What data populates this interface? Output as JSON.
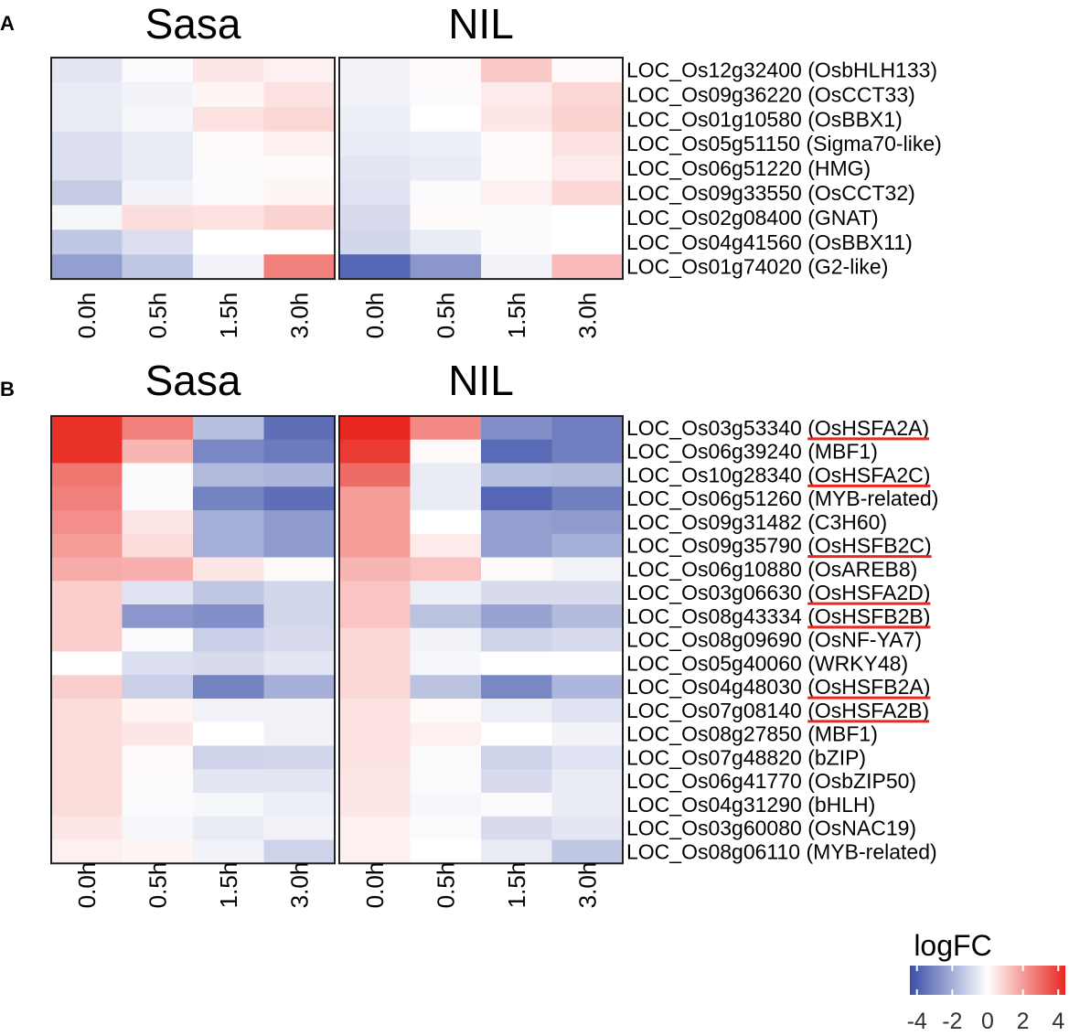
{
  "chart_data": [
    {
      "type": "heatmap",
      "panel_label": "A",
      "groups": [
        "Sasa",
        "NIL"
      ],
      "timepoints": [
        "0.0h",
        "0.5h",
        "1.5h",
        "3.0h"
      ],
      "genes": [
        {
          "id": "LOC_Os12g32400",
          "name": "(OsbHLH133)",
          "underlined": false
        },
        {
          "id": "LOC_Os09g36220",
          "name": "(OsCCT33)",
          "underlined": false
        },
        {
          "id": "LOC_Os01g10580",
          "name": "(OsBBX1)",
          "underlined": false
        },
        {
          "id": "LOC_Os05g51150",
          "name": "(Sigma70-like)",
          "underlined": false
        },
        {
          "id": "LOC_Os06g51220",
          "name": "(HMG)",
          "underlined": false
        },
        {
          "id": "LOC_Os09g33550",
          "name": "(OsCCT32)",
          "underlined": false
        },
        {
          "id": "LOC_Os02g08400",
          "name": "(GNAT)",
          "underlined": false
        },
        {
          "id": "LOC_Os04g41560",
          "name": "(OsBBX11)",
          "underlined": false
        },
        {
          "id": "LOC_Os01g74020",
          "name": "(G2-like)",
          "underlined": false
        }
      ],
      "values": {
        "Sasa": [
          [
            -0.6,
            -0.1,
            0.5,
            0.3
          ],
          [
            -0.5,
            -0.3,
            0.2,
            0.6
          ],
          [
            -0.5,
            -0.2,
            0.6,
            0.8
          ],
          [
            -0.8,
            -0.5,
            0.1,
            0.3
          ],
          [
            -0.8,
            -0.5,
            -0.1,
            0.1
          ],
          [
            -1.3,
            -0.3,
            -0.1,
            0.2
          ],
          [
            -0.2,
            0.7,
            0.6,
            0.9
          ],
          [
            -1.4,
            -0.8,
            0.0,
            0.0
          ],
          [
            -2.4,
            -1.4,
            -0.3,
            2.6
          ]
        ],
        "NIL": [
          [
            -0.3,
            0.1,
            1.1,
            0.1
          ],
          [
            -0.3,
            -0.1,
            0.4,
            0.8
          ],
          [
            -0.4,
            0.0,
            0.5,
            0.9
          ],
          [
            -0.5,
            -0.4,
            0.1,
            0.6
          ],
          [
            -0.6,
            -0.5,
            0.1,
            0.4
          ],
          [
            -0.7,
            -0.1,
            0.3,
            0.8
          ],
          [
            -0.9,
            0.1,
            -0.1,
            0.0
          ],
          [
            -1.0,
            -0.5,
            -0.1,
            0.0
          ],
          [
            -3.8,
            -2.6,
            -0.3,
            1.4
          ]
        ]
      }
    },
    {
      "type": "heatmap",
      "panel_label": "B",
      "groups": [
        "Sasa",
        "NIL"
      ],
      "timepoints": [
        "0.0h",
        "0.5h",
        "1.5h",
        "3.0h"
      ],
      "genes": [
        {
          "id": "LOC_Os03g53340",
          "name": "(OsHSFA2A)",
          "underlined": true
        },
        {
          "id": "LOC_Os06g39240",
          "name": "(MBF1)",
          "underlined": false
        },
        {
          "id": "LOC_Os10g28340",
          "name": "(OsHSFA2C)",
          "underlined": true
        },
        {
          "id": "LOC_Os06g51260",
          "name": "(MYB-related)",
          "underlined": false
        },
        {
          "id": "LOC_Os09g31482",
          "name": "(C3H60)",
          "underlined": false
        },
        {
          "id": "LOC_Os09g35790",
          "name": "(OsHSFB2C)",
          "underlined": true
        },
        {
          "id": "LOC_Os06g10880",
          "name": "(OsAREB8)",
          "underlined": false
        },
        {
          "id": "LOC_Os03g06630",
          "name": "(OsHSFA2D)",
          "underlined": true
        },
        {
          "id": "LOC_Os08g43334",
          "name": "(OsHSFB2B)",
          "underlined": true
        },
        {
          "id": "LOC_Os08g09690",
          "name": "(OsNF-YA7)",
          "underlined": false
        },
        {
          "id": "LOC_Os05g40060",
          "name": "(WRKY48)",
          "underlined": false
        },
        {
          "id": "LOC_Os04g48030",
          "name": "(OsHSFB2A)",
          "underlined": true
        },
        {
          "id": "LOC_Os07g08140",
          "name": "(OsHSFA2B)",
          "underlined": true
        },
        {
          "id": "LOC_Os08g27850",
          "name": "(MBF1)",
          "underlined": false
        },
        {
          "id": "LOC_Os07g48820",
          "name": "(bZIP)",
          "underlined": false
        },
        {
          "id": "LOC_Os06g41770",
          "name": "(OsbZIP50)",
          "underlined": false
        },
        {
          "id": "LOC_Os04g31290",
          "name": "(bHLH)",
          "underlined": false
        },
        {
          "id": "LOC_Os03g60080",
          "name": "(OsNAC19)",
          "underlined": false
        },
        {
          "id": "LOC_Os08g06110",
          "name": "(MYB-related)",
          "underlined": false
        }
      ],
      "values": {
        "Sasa": [
          [
            4.2,
            2.6,
            -1.6,
            -3.6
          ],
          [
            4.2,
            1.5,
            -3.0,
            -3.3
          ],
          [
            2.8,
            -0.1,
            -1.7,
            -1.8
          ],
          [
            2.6,
            -0.1,
            -3.1,
            -3.6
          ],
          [
            2.3,
            0.5,
            -2.0,
            -2.5
          ],
          [
            2.0,
            0.7,
            -2.0,
            -2.5
          ],
          [
            1.7,
            1.6,
            0.5,
            0.1
          ],
          [
            1.0,
            -0.7,
            -1.4,
            -1.0
          ],
          [
            1.0,
            -2.6,
            -2.8,
            -1.0
          ],
          [
            1.0,
            -0.1,
            -1.2,
            -0.9
          ],
          [
            0.0,
            -0.8,
            -0.9,
            -0.6
          ],
          [
            1.0,
            -1.2,
            -3.1,
            -2.0
          ],
          [
            0.7,
            0.2,
            -0.3,
            -0.3
          ],
          [
            0.7,
            0.5,
            0.0,
            -0.3
          ],
          [
            0.7,
            0.1,
            -1.1,
            -1.0
          ],
          [
            0.7,
            -0.1,
            -0.6,
            -0.6
          ],
          [
            0.7,
            -0.1,
            -0.2,
            -0.4
          ],
          [
            0.5,
            -0.2,
            -0.5,
            -0.3
          ],
          [
            0.3,
            0.2,
            -0.3,
            -1.1
          ]
        ],
        "NIL": [
          [
            4.4,
            2.4,
            -2.8,
            -3.2
          ],
          [
            4.0,
            0.1,
            -3.7,
            -3.2
          ],
          [
            3.0,
            -0.5,
            -1.6,
            -1.7
          ],
          [
            2.0,
            -0.5,
            -3.8,
            -3.2
          ],
          [
            2.0,
            0.0,
            -2.4,
            -2.5
          ],
          [
            2.0,
            0.4,
            -2.4,
            -2.0
          ],
          [
            1.5,
            1.2,
            0.1,
            -0.3
          ],
          [
            1.2,
            -0.4,
            -0.9,
            -0.9
          ],
          [
            1.2,
            -1.5,
            -2.3,
            -1.7
          ],
          [
            0.8,
            -0.3,
            -1.1,
            -0.9
          ],
          [
            0.8,
            -0.2,
            0.0,
            0.0
          ],
          [
            0.8,
            -1.5,
            -3.0,
            -1.8
          ],
          [
            0.6,
            0.1,
            -0.4,
            -0.7
          ],
          [
            0.6,
            0.3,
            0.0,
            -0.3
          ],
          [
            0.6,
            -0.1,
            -1.1,
            -0.7
          ],
          [
            0.5,
            -0.1,
            -0.9,
            -0.5
          ],
          [
            0.5,
            -0.2,
            -0.1,
            -0.5
          ],
          [
            0.3,
            -0.1,
            -0.9,
            -0.6
          ],
          [
            0.3,
            0.0,
            -0.5,
            -1.4
          ]
        ]
      }
    }
  ],
  "legend": {
    "title": "logFC",
    "ticks": [
      "-4",
      "-2",
      "0",
      "2",
      "4"
    ],
    "range": [
      -4.4,
      4.4
    ],
    "colors": {
      "low": "#3a4fa8",
      "mid": "#ffffff",
      "high": "#e8271f"
    }
  },
  "underline_color": "#e8271f"
}
